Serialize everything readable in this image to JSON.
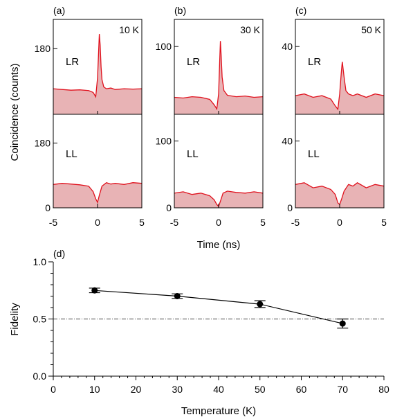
{
  "chart_data": [
    {
      "type": "area",
      "panel_label": "(a)",
      "temperature_label": "10 K",
      "x_range": [
        -5,
        5
      ],
      "x_ticks": [
        "-5",
        "0",
        "5"
      ],
      "series": [
        {
          "name": "LR",
          "ylim": [
            0,
            260
          ],
          "y_ticks": [
            {
              "value": 0,
              "label": "0"
            },
            {
              "value": 180,
              "label": "180"
            }
          ],
          "x": [
            -5,
            -4,
            -3,
            -2,
            -1,
            -0.5,
            -0.2,
            0,
            0.1,
            0.2,
            0.3,
            0.4,
            0.5,
            0.7,
            1,
            1.5,
            2,
            3,
            4,
            5
          ],
          "y": [
            70,
            68,
            66,
            67,
            65,
            60,
            48,
            100,
            160,
            220,
            190,
            130,
            95,
            75,
            70,
            72,
            68,
            70,
            69,
            70
          ]
        },
        {
          "name": "LL",
          "ylim": [
            0,
            260
          ],
          "y_ticks": [
            {
              "value": 0,
              "label": "0"
            },
            {
              "value": 180,
              "label": "180"
            }
          ],
          "x": [
            -5,
            -4,
            -3,
            -2,
            -1,
            -0.5,
            -0.2,
            0,
            0.2,
            0.5,
            1,
            1.5,
            2,
            3,
            4,
            5
          ],
          "y": [
            65,
            68,
            66,
            64,
            60,
            45,
            25,
            15,
            35,
            60,
            70,
            66,
            68,
            65,
            70,
            68
          ]
        }
      ]
    },
    {
      "type": "area",
      "panel_label": "(b)",
      "temperature_label": "30 K",
      "x_range": [
        -5,
        5
      ],
      "x_ticks": [
        "-5",
        "0",
        "5"
      ],
      "series": [
        {
          "name": "LR",
          "ylim": [
            0,
            140
          ],
          "y_ticks": [
            {
              "value": 0,
              "label": "0"
            },
            {
              "value": 100,
              "label": "100"
            }
          ],
          "x": [
            -5,
            -4,
            -3,
            -2,
            -1,
            -0.5,
            -0.2,
            0,
            0.1,
            0.2,
            0.3,
            0.4,
            0.6,
            1,
            1.5,
            2,
            3,
            4,
            5
          ],
          "y": [
            25,
            24,
            26,
            25,
            22,
            14,
            8,
            30,
            70,
            108,
            85,
            55,
            35,
            28,
            27,
            26,
            27,
            25,
            26
          ]
        },
        {
          "name": "LL",
          "ylim": [
            0,
            140
          ],
          "y_ticks": [
            {
              "value": 0,
              "label": "0"
            },
            {
              "value": 100,
              "label": "100"
            }
          ],
          "x": [
            -5,
            -4,
            -3,
            -2,
            -1,
            -0.5,
            -0.2,
            0,
            0.2,
            0.5,
            1,
            1.5,
            2,
            3,
            4,
            5
          ],
          "y": [
            22,
            24,
            20,
            22,
            18,
            12,
            5,
            2,
            10,
            22,
            25,
            24,
            23,
            22,
            24,
            22
          ]
        }
      ]
    },
    {
      "type": "area",
      "panel_label": "(c)",
      "temperature_label": "50 K",
      "x_range": [
        -5,
        5
      ],
      "x_ticks": [
        "-5",
        "0",
        "5"
      ],
      "series": [
        {
          "name": "LR",
          "ylim": [
            0,
            56
          ],
          "y_ticks": [
            {
              "value": 0,
              "label": "0"
            },
            {
              "value": 40,
              "label": "40"
            }
          ],
          "x": [
            -5,
            -4,
            -3,
            -2,
            -1,
            -0.5,
            -0.2,
            0,
            0.2,
            0.3,
            0.5,
            0.7,
            1,
            1.5,
            2,
            3,
            4,
            5
          ],
          "y": [
            11,
            12,
            10,
            11,
            9,
            5,
            3,
            12,
            26,
            31,
            22,
            14,
            12,
            11,
            12,
            10,
            12,
            11
          ]
        },
        {
          "name": "LL",
          "ylim": [
            0,
            56
          ],
          "y_ticks": [
            {
              "value": 0,
              "label": "0"
            },
            {
              "value": 40,
              "label": "40"
            }
          ],
          "x": [
            -5,
            -4,
            -3,
            -2,
            -1,
            -0.5,
            -0.2,
            0,
            0.2,
            0.5,
            1,
            1.5,
            2,
            3,
            4,
            5
          ],
          "y": [
            14,
            15,
            12,
            13,
            11,
            8,
            3,
            2,
            5,
            10,
            14,
            13,
            15,
            12,
            14,
            13
          ]
        }
      ]
    },
    {
      "type": "scatter",
      "panel_label": "(d)",
      "xlabel": "Temperature (K)",
      "ylabel": "Fidelity",
      "xlim": [
        0,
        80
      ],
      "ylim": [
        0.0,
        1.0
      ],
      "x_ticks": [
        0,
        10,
        20,
        30,
        40,
        50,
        60,
        70,
        80
      ],
      "y_ticks": [
        {
          "value": 0.0,
          "label": "0.0"
        },
        {
          "value": 0.5,
          "label": "0.5"
        },
        {
          "value": 1.0,
          "label": "1.0"
        }
      ],
      "x": [
        10,
        30,
        50,
        70
      ],
      "y": [
        0.75,
        0.7,
        0.63,
        0.46
      ],
      "error": [
        0.02,
        0.02,
        0.03,
        0.04
      ],
      "reference_line": 0.5,
      "connected": true
    }
  ],
  "shared": {
    "top_ylabel": "Coincidence (counts)",
    "top_xlabel": "Time (ns)"
  },
  "colors": {
    "trace": "#e0101c",
    "fill": "#e8b3b5",
    "axis": "#000000"
  }
}
